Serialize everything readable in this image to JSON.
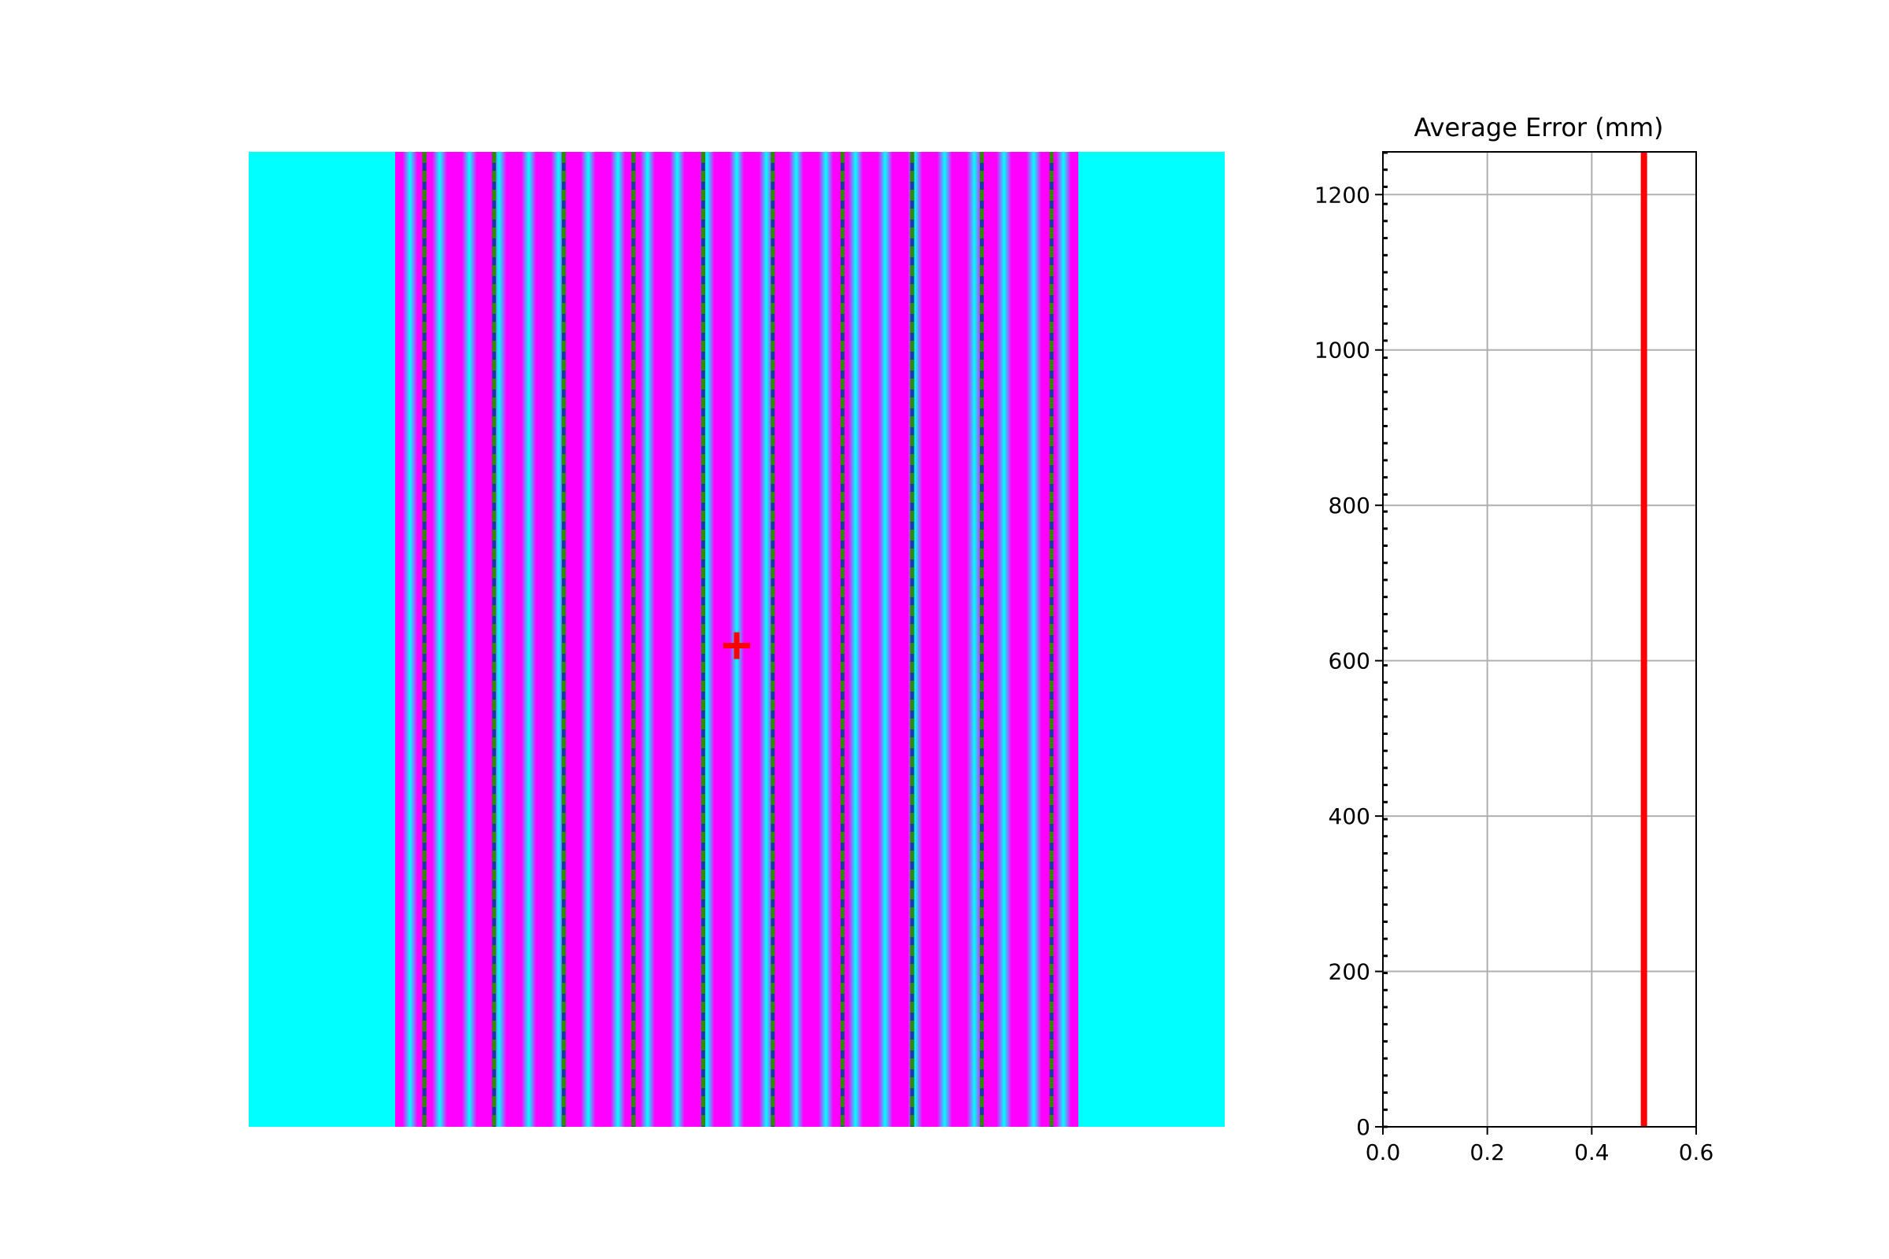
{
  "chart_data": [
    {
      "type": "heatmap",
      "title": "",
      "xlabel": "",
      "ylabel": "",
      "pattern": "vertical fringes",
      "background_color": "#00ffff",
      "fringe_color": "#ff00ff",
      "fringe_count": 23,
      "fringe_band": {
        "start": 0.15,
        "end": 0.85
      },
      "fringe_period": 0.0305,
      "marker_lines": {
        "count": 10,
        "first": 0.18,
        "spacing": 0.0714,
        "colors": [
          "#1a3aa0",
          "#2e8b00"
        ],
        "style": "dashed"
      },
      "center_marker": {
        "symbol": "+",
        "color": "#ff0000",
        "x": 0.5,
        "y": 0.5
      }
    },
    {
      "type": "line",
      "title": "Average Error (mm)",
      "xlabel": "",
      "ylabel": "",
      "xlim": [
        0,
        0.6
      ],
      "ylim": [
        0,
        1255
      ],
      "xticks": [
        0.0,
        0.2,
        0.4,
        0.6
      ],
      "xtick_labels": [
        "0.0",
        "0.2",
        "0.4",
        "0.6"
      ],
      "yticks": [
        0,
        200,
        400,
        600,
        800,
        1000,
        1200
      ],
      "ytick_labels": [
        "0",
        "200",
        "400",
        "600",
        "800",
        "1000",
        "1200"
      ],
      "grid": true,
      "series": [
        {
          "color": "#ff0000",
          "x": [
            0.5,
            0.5
          ],
          "y": [
            0,
            1255
          ]
        }
      ]
    }
  ]
}
